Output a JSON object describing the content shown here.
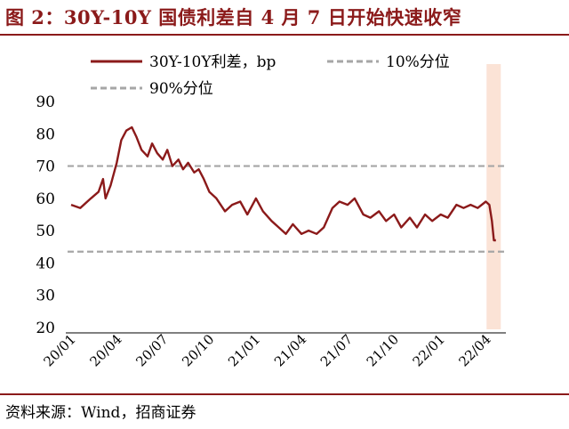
{
  "title": "图 2：30Y-10Y 国债利差自 4 月 7 日开始快速收窄",
  "source": "资料来源：Wind，招商证券",
  "chart_data": {
    "type": "line",
    "title": "",
    "xlabel": "",
    "ylabel": "",
    "ylim": [
      20,
      90
    ],
    "y_ticks": [
      20,
      30,
      40,
      50,
      60,
      70,
      80,
      90
    ],
    "x_tick_labels": [
      "20/01",
      "20/04",
      "20/07",
      "20/10",
      "21/01",
      "21/04",
      "21/07",
      "21/10",
      "22/01",
      "22/04"
    ],
    "legend_position": "top-left",
    "grid": false,
    "colors": {
      "spread": "#8b1a1a",
      "reference": "#a6a6a6",
      "highlight": "#fbe3d6"
    },
    "series": [
      {
        "name": "30Y-10Y利差，bp",
        "style": "solid",
        "x": [
          "2020-01-02",
          "2020-01-20",
          "2020-02-10",
          "2020-02-25",
          "2020-03-05",
          "2020-03-10",
          "2020-03-20",
          "2020-04-01",
          "2020-04-10",
          "2020-04-20",
          "2020-05-01",
          "2020-05-10",
          "2020-05-20",
          "2020-06-01",
          "2020-06-10",
          "2020-06-20",
          "2020-07-01",
          "2020-07-10",
          "2020-07-20",
          "2020-08-01",
          "2020-08-10",
          "2020-08-20",
          "2020-09-01",
          "2020-09-10",
          "2020-09-20",
          "2020-10-01",
          "2020-10-15",
          "2020-11-01",
          "2020-11-15",
          "2020-12-01",
          "2020-12-15",
          "2021-01-01",
          "2021-01-15",
          "2021-02-01",
          "2021-02-15",
          "2021-03-01",
          "2021-03-15",
          "2021-04-01",
          "2021-04-15",
          "2021-05-01",
          "2021-05-15",
          "2021-06-01",
          "2021-06-15",
          "2021-07-01",
          "2021-07-15",
          "2021-08-01",
          "2021-08-15",
          "2021-09-01",
          "2021-09-15",
          "2021-10-01",
          "2021-10-15",
          "2021-11-01",
          "2021-11-15",
          "2021-12-01",
          "2021-12-15",
          "2022-01-01",
          "2022-01-15",
          "2022-02-01",
          "2022-02-15",
          "2022-03-01",
          "2022-03-15",
          "2022-03-31",
          "2022-04-07",
          "2022-04-12",
          "2022-04-16",
          "2022-04-20"
        ],
        "values": [
          58,
          57,
          60,
          62,
          66,
          60,
          64,
          71,
          78,
          81,
          82,
          79,
          75,
          73,
          77,
          74,
          72,
          75,
          70,
          72,
          69,
          71,
          68,
          69,
          66,
          62,
          60,
          56,
          58,
          59,
          55,
          60,
          56,
          53,
          51,
          49,
          52,
          49,
          50,
          49,
          51,
          57,
          59,
          58,
          60,
          55,
          54,
          56,
          53,
          55,
          51,
          54,
          51,
          55,
          53,
          55,
          54,
          58,
          57,
          58,
          57,
          59,
          58,
          53,
          47,
          47
        ]
      },
      {
        "name": "10%分位",
        "style": "dashed",
        "value": 43.5
      },
      {
        "name": "90%分位",
        "style": "dashed",
        "value": 70
      }
    ]
  }
}
